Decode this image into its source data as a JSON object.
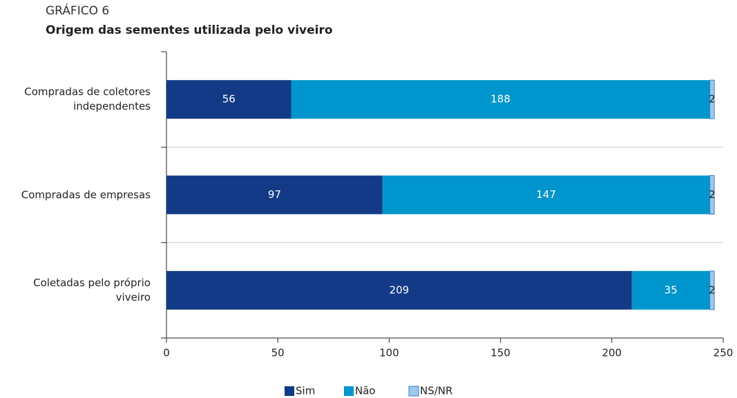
{
  "chart_data": {
    "type": "stacked-barh",
    "title": "GRÁFICO 6",
    "subtitle": "Origem das sementes utilizada pelo viveiro",
    "categories": [
      "Compradas de coletores independentes",
      "Compradas de empresas",
      "Coletadas pelo próprio viveiro"
    ],
    "series": [
      {
        "name": "Sim",
        "color": "#123a87",
        "values": [
          56,
          97,
          209
        ]
      },
      {
        "name": "Não",
        "color": "#0095cc",
        "values": [
          188,
          147,
          35
        ]
      },
      {
        "name": "NS/NR",
        "color": "#9dc8ec",
        "values": [
          2,
          2,
          2
        ]
      }
    ],
    "xlim": [
      0,
      250
    ],
    "xticks": [
      0,
      50,
      100,
      150,
      200,
      250
    ],
    "grid": true,
    "legend": "bottom"
  }
}
